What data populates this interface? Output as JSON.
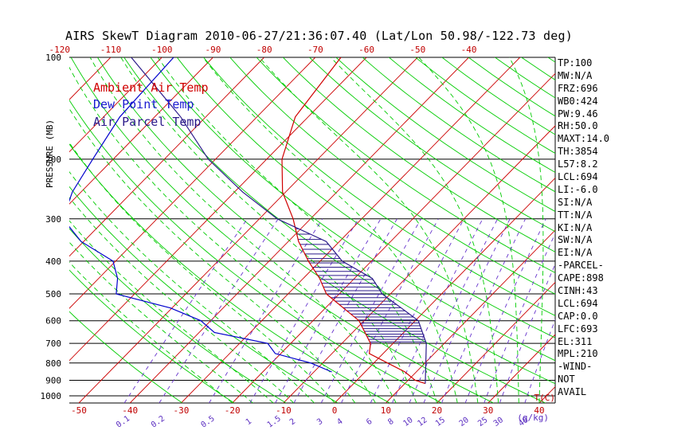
{
  "title": "AIRS SkewT Diagram 2010-06-27/21:36:07.40 (Lat/Lon 50.98/-122.73 deg)",
  "colors": {
    "ambient": "#d00000",
    "dewpoint": "#0000cc",
    "parcel": "#2b1a8a",
    "isotherm": "#cc0000",
    "dry_adiabat": "#00cc00",
    "moist_adiabat": "#00cc00",
    "mixing_ratio": "#6633cc",
    "isobar": "#000000"
  },
  "legend": [
    {
      "label": "Ambient Air Temp",
      "color": "#d00000"
    },
    {
      "label": "Dew Point Temp",
      "color": "#1a1ad0"
    },
    {
      "label": "Air Parcel Temp",
      "color": "#2b1a8a"
    }
  ],
  "indices": [
    "TP:100",
    "MW:N/A",
    "FRZ:696",
    "WB0:424",
    "PW:9.46",
    "RH:50.0",
    "MAXT:14.0",
    "TH:3854",
    "L57:8.2",
    "LCL:694",
    "LI:-6.0",
    "SI:N/A",
    "TT:N/A",
    "KI:N/A",
    "SW:N/A",
    "EI:N/A",
    "-PARCEL-",
    "CAPE:898",
    "CINH:43",
    "LCL:694",
    "CAP:0.0",
    "LFC:693",
    "EL:311",
    "MPL:210",
    "-WIND-",
    "NOT",
    "AVAIL"
  ],
  "chart_data": {
    "type": "line",
    "title": "AIRS SkewT Diagram 2010-06-27/21:36:07.40 (Lat/Lon 50.98/-122.73 deg)",
    "ylabel": "PRESSURE (MB)",
    "xlabel": "T(C)",
    "y_scale": "log",
    "ylim": [
      1050,
      100
    ],
    "xlim_bottom": [
      -55,
      40
    ],
    "pressure_ticks": [
      100,
      200,
      300,
      400,
      500,
      600,
      700,
      800,
      900,
      1000
    ],
    "bottom_temp_ticks": [
      -50,
      -40,
      -30,
      -20,
      -10,
      0,
      10,
      20,
      30,
      40
    ],
    "top_temp_ticks": [
      -120,
      -110,
      -100,
      -90,
      -80,
      -70,
      -60,
      -50,
      -40
    ],
    "mixing_ratio_ticks": [
      "0.1",
      "0.2",
      "0.5",
      "1",
      "1.5",
      "2",
      "3",
      "4",
      "6",
      "8",
      "10",
      "12",
      "15",
      "20",
      "25",
      "30",
      "40"
    ],
    "mixing_ratio_unit": "(g/kg)",
    "series": [
      {
        "name": "Ambient Air Temp",
        "x": [
          -65,
          -62.5,
          -57,
          -50.6,
          -43.4,
          -38,
          -32.3,
          -26.8,
          -22.5,
          -16.5,
          -11,
          -4.4,
          -2.7,
          2.7,
          7.8,
          11.4,
          14
        ],
        "y": [
          100,
          150,
          200,
          250,
          300,
          350,
          400,
          450,
          500,
          550,
          600,
          700,
          750,
          800,
          850,
          900,
          920
        ]
      },
      {
        "name": "Dew Point Temp",
        "x": [
          -97.7,
          -96.8,
          -94,
          -91.7,
          -88.4,
          -80.5,
          -70.5,
          -66.3,
          -63.6,
          -50.3,
          -41.9,
          -37,
          -24.5,
          -21.1,
          -12.3,
          -6.5
        ],
        "y": [
          100,
          150,
          200,
          250,
          300,
          350,
          400,
          450,
          500,
          550,
          600,
          650,
          700,
          750,
          800,
          850
        ]
      },
      {
        "name": "Air Parcel Temp",
        "x": [
          -106,
          -84.9,
          -71.4,
          -58.4,
          -46.5,
          -32.6,
          -25.7,
          -16.5,
          -11.6,
          -5.2,
          0.6,
          6.5,
          14
        ],
        "y": [
          100,
          150,
          200,
          250,
          300,
          350,
          400,
          450,
          500,
          550,
          600,
          700,
          920
        ]
      }
    ],
    "cape_shading": {
      "bottom_pressure": 693,
      "top_pressure": 311
    }
  }
}
